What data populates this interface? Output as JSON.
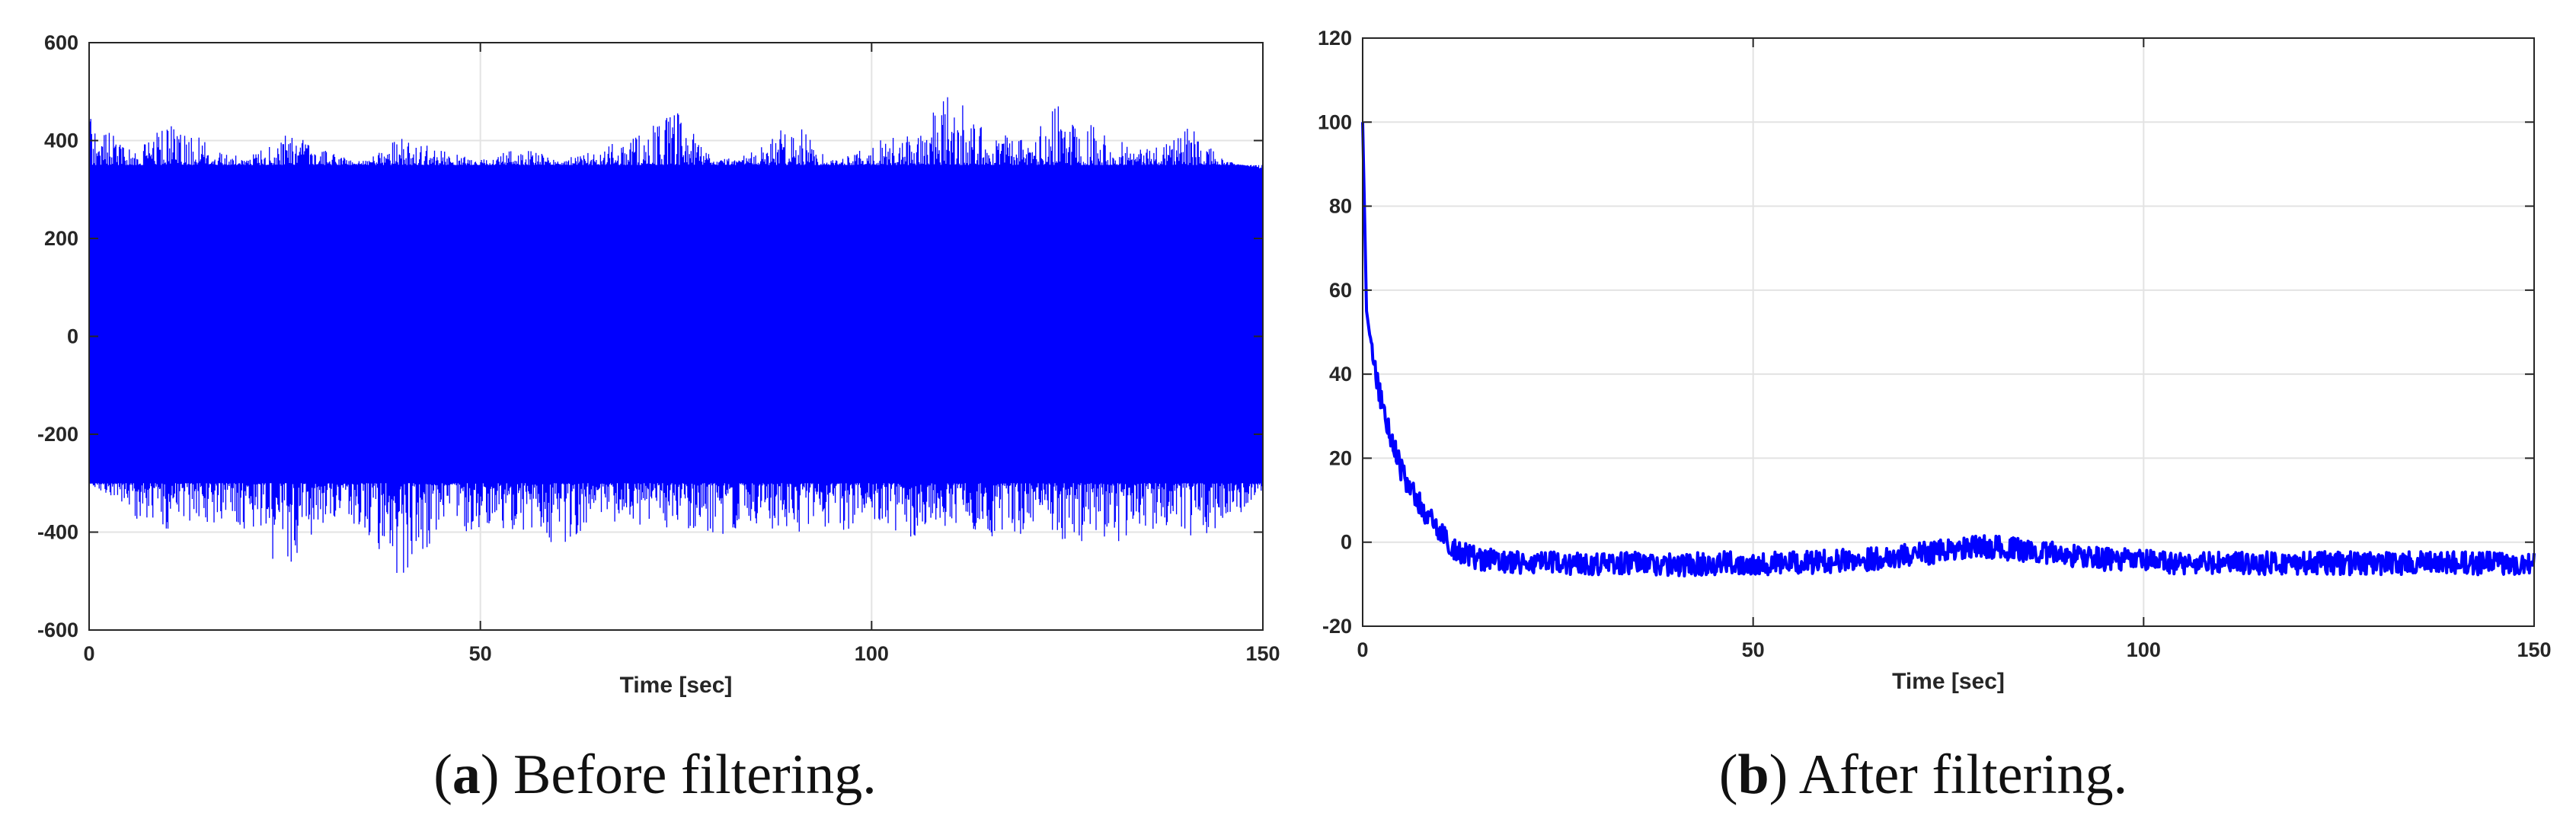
{
  "panels": [
    {
      "letter": "a",
      "caption": "Before filtering.",
      "chart_data": {
        "type": "line",
        "title": "",
        "xlabel": "Time [sec]",
        "ylabel": "",
        "xlim": [
          0,
          150
        ],
        "ylim": [
          -600,
          600
        ],
        "xticks": [
          0,
          50,
          100,
          150
        ],
        "yticks": [
          -600,
          -400,
          -200,
          0,
          200,
          400,
          600
        ],
        "grid": true,
        "line_color": "#0000ff",
        "series": [
          {
            "x": [
              0,
              5,
              10,
              15,
              20,
              25,
              30,
              35,
              40,
              45,
              50,
              55,
              60,
              65,
              70,
              75,
              80,
              85,
              90,
              95,
              100,
              105,
              110,
              115,
              120,
              125,
              130,
              135,
              140,
              145,
              150
            ],
            "envelope_max": [
              470,
              380,
              440,
              400,
              360,
              420,
              380,
              360,
              410,
              380,
              360,
              390,
              360,
              380,
              420,
              460,
              360,
              380,
              440,
              360,
              400,
              410,
              500,
              420,
              400,
              500,
              420,
              380,
              440,
              360,
              340
            ],
            "envelope_min": [
              -300,
              -360,
              -420,
              -380,
              -400,
              -480,
              -380,
              -400,
              -500,
              -420,
              -390,
              -400,
              -430,
              -380,
              -400,
              -390,
              -410,
              -380,
              -420,
              -400,
              -390,
              -410,
              -400,
              -420,
              -400,
              -420,
              -440,
              -390,
              -410,
              -400,
              -320
            ],
            "typical_band": [
              -300,
              350
            ]
          }
        ]
      }
    },
    {
      "letter": "b",
      "caption": "After filtering.",
      "chart_data": {
        "type": "line",
        "title": "",
        "xlabel": "Time [sec]",
        "ylabel": "",
        "xlim": [
          0,
          150
        ],
        "ylim": [
          -20,
          120
        ],
        "xticks": [
          0,
          50,
          100,
          150
        ],
        "yticks": [
          -20,
          0,
          20,
          40,
          60,
          80,
          100,
          120
        ],
        "grid": true,
        "line_color": "#0000ff",
        "series": [
          {
            "x": [
              0,
              0.5,
              1,
              1.5,
              2,
              3,
              4,
              5,
              6,
              8,
              10,
              12,
              15,
              20,
              25,
              30,
              35,
              40,
              45,
              50,
              55,
              60,
              65,
              70,
              75,
              80,
              85,
              90,
              95,
              100,
              105,
              110,
              115,
              120,
              125,
              130,
              135,
              140,
              145,
              150
            ],
            "y": [
              100,
              55,
              48,
              42,
              37,
              29,
              23,
              17,
              13,
              7,
              2,
              -2,
              -4,
              -5,
              -5,
              -5,
              -5,
              -5.5,
              -5,
              -5,
              -5,
              -4.5,
              -4,
              -3,
              -2,
              -1,
              -2,
              -3,
              -4,
              -4.5,
              -5,
              -5,
              -5,
              -5,
              -5,
              -5,
              -5,
              -5,
              -5,
              -5
            ]
          }
        ]
      }
    }
  ]
}
